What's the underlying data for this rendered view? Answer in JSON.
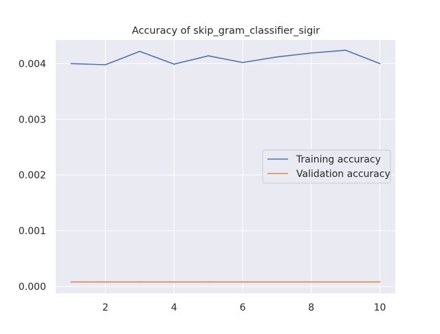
{
  "chart_data": {
    "type": "line",
    "title": "Accuracy of skip_gram_classifier_sigir",
    "xlabel": "",
    "ylabel": "",
    "x": [
      1,
      2,
      3,
      4,
      5,
      6,
      7,
      8,
      9,
      10
    ],
    "xlim": [
      0.55,
      10.45
    ],
    "ylim": [
      -0.000125,
      0.004425
    ],
    "xticks": [
      "2",
      "4",
      "6",
      "8",
      "10"
    ],
    "yticks": [
      "0.000",
      "0.001",
      "0.002",
      "0.003",
      "0.004"
    ],
    "grid": true,
    "legend_position": "center-right",
    "background": "#eaeaf2",
    "series": [
      {
        "name": "Training accuracy",
        "color": "#4c72b0",
        "values": [
          0.004,
          0.00398,
          0.00422,
          0.00399,
          0.00414,
          0.00402,
          0.00412,
          0.00419,
          0.00424,
          0.004
        ]
      },
      {
        "name": "Validation accuracy",
        "color": "#dd8452",
        "values": [
          8e-05,
          8e-05,
          8e-05,
          8e-05,
          8e-05,
          8e-05,
          8e-05,
          8e-05,
          8e-05,
          8e-05
        ]
      }
    ]
  }
}
